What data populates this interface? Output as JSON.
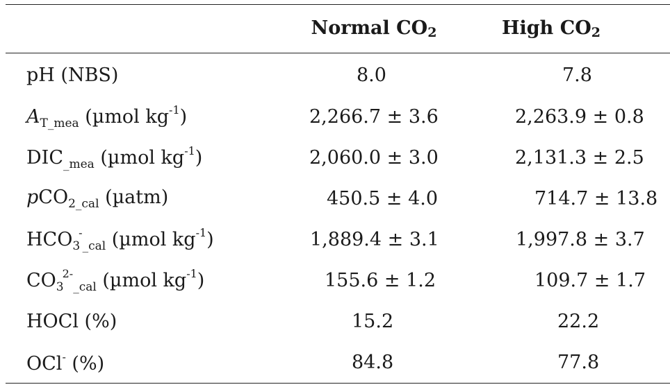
{
  "header": {
    "col1_label": "Normal CO",
    "col1_sub": "2",
    "col2_label": "High CO",
    "col2_sub": "2"
  },
  "rows": [
    {
      "label": "pH (NBS)",
      "normal": "8.0",
      "high": "7.8"
    },
    {
      "label_main": "A",
      "label_sub": "T_mea",
      "label_unit": " (µmol kg",
      "label_unit_sup": "-1",
      "label_close": ")",
      "normal": "2,266.7 ± 3.6",
      "high": "2,263.9 ± 0.8"
    },
    {
      "label_main": "DIC",
      "label_sub": "_mea",
      "label_unit": " (µmol kg",
      "label_unit_sup": "-1",
      "label_close": ")",
      "normal": "2,060.0 ± 3.0",
      "high": "2,131.3 ± 2.5"
    },
    {
      "label_italic": "p",
      "label_main": "CO",
      "label_sub": "2_cal",
      "label_unit": " (µatm)",
      "normal": "450.5 ± 4.0",
      "high": "714.7 ± 13.8"
    },
    {
      "label_main": "HCO",
      "label_sub_a": "3",
      "label_sup_a": "-",
      "label_sub": "_cal",
      "label_unit": " (µmol kg",
      "label_unit_sup": "-1",
      "label_close": ")",
      "normal": "1,889.4 ± 3.1",
      "high": "1,997.8 ± 3.7"
    },
    {
      "label_main": "CO",
      "label_sub_a": "3",
      "label_sup_a": "2-",
      "label_sub": "_cal",
      "label_unit": " (µmol kg",
      "label_unit_sup": "-1",
      "label_close": ")",
      "normal": "155.6 ± 1.2",
      "high": "109.7 ± 1.7"
    },
    {
      "label": "HOCl (%)",
      "normal": "15.2",
      "high": "22.2"
    },
    {
      "label_main": "OCl",
      "label_sup_a": "-",
      "label_unit": " (%)",
      "normal": "84.8",
      "high": "77.8"
    }
  ]
}
